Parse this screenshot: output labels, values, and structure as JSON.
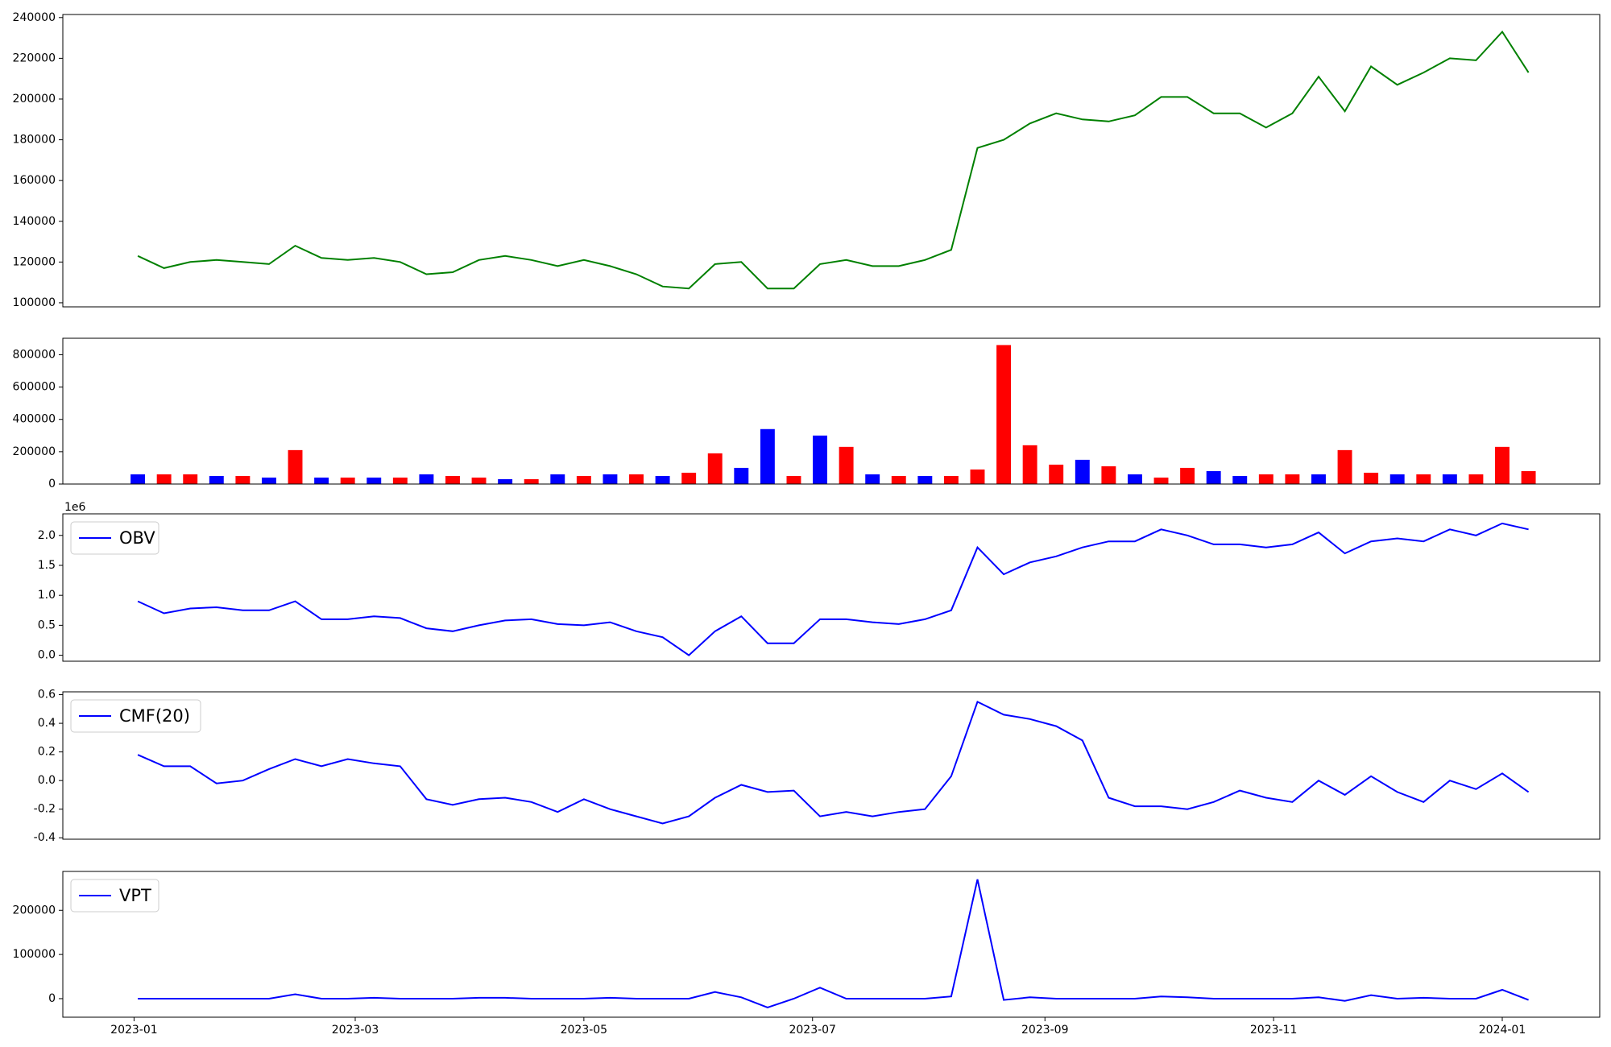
{
  "chart_data": [
    {
      "type": "line",
      "color": "#008000",
      "x": [
        "2023-01-02",
        "2023-01-09",
        "2023-01-16",
        "2023-01-23",
        "2023-01-30",
        "2023-02-06",
        "2023-02-13",
        "2023-02-20",
        "2023-02-27",
        "2023-03-06",
        "2023-03-13",
        "2023-03-20",
        "2023-03-27",
        "2023-04-03",
        "2023-04-10",
        "2023-04-17",
        "2023-04-24",
        "2023-05-01",
        "2023-05-08",
        "2023-05-15",
        "2023-05-22",
        "2023-05-29",
        "2023-06-05",
        "2023-06-12",
        "2023-06-19",
        "2023-06-26",
        "2023-07-03",
        "2023-07-10",
        "2023-07-17",
        "2023-07-24",
        "2023-07-31",
        "2023-08-07",
        "2023-08-14",
        "2023-08-21",
        "2023-08-28",
        "2023-09-04",
        "2023-09-11",
        "2023-09-18",
        "2023-09-25",
        "2023-10-02",
        "2023-10-09",
        "2023-10-16",
        "2023-10-23",
        "2023-10-30",
        "2023-11-06",
        "2023-11-13",
        "2023-11-20",
        "2023-11-27",
        "2023-12-04",
        "2023-12-11",
        "2023-12-18",
        "2023-12-25",
        "2024-01-01",
        "2024-01-08"
      ],
      "values": [
        123000,
        117000,
        120000,
        121000,
        120000,
        119000,
        128000,
        122000,
        121000,
        122000,
        120000,
        114000,
        115000,
        121000,
        123000,
        121000,
        118000,
        121000,
        118000,
        114000,
        108000,
        107000,
        119000,
        120000,
        107000,
        107000,
        119000,
        121000,
        118000,
        118000,
        121000,
        126000,
        176000,
        180000,
        188000,
        193000,
        190000,
        189000,
        192000,
        201000,
        201000,
        193000,
        193000,
        186000,
        193000,
        211000,
        194000,
        216000,
        207000,
        213000,
        220000,
        219000,
        233000,
        213000
      ],
      "xlim": [
        "2022-12-13",
        "2024-01-27"
      ],
      "ylim": [
        98000,
        241500
      ],
      "yticks": [
        100000,
        120000,
        140000,
        160000,
        180000,
        200000,
        220000,
        240000
      ]
    },
    {
      "type": "bar",
      "x": [
        "2023-01-02",
        "2023-01-09",
        "2023-01-16",
        "2023-01-23",
        "2023-01-30",
        "2023-02-06",
        "2023-02-13",
        "2023-02-20",
        "2023-02-27",
        "2023-03-06",
        "2023-03-13",
        "2023-03-20",
        "2023-03-27",
        "2023-04-03",
        "2023-04-10",
        "2023-04-17",
        "2023-04-24",
        "2023-05-01",
        "2023-05-08",
        "2023-05-15",
        "2023-05-22",
        "2023-05-29",
        "2023-06-05",
        "2023-06-12",
        "2023-06-19",
        "2023-06-26",
        "2023-07-03",
        "2023-07-10",
        "2023-07-17",
        "2023-07-24",
        "2023-07-31",
        "2023-08-07",
        "2023-08-14",
        "2023-08-21",
        "2023-08-28",
        "2023-09-04",
        "2023-09-11",
        "2023-09-18",
        "2023-09-25",
        "2023-10-02",
        "2023-10-09",
        "2023-10-16",
        "2023-10-23",
        "2023-10-30",
        "2023-11-06",
        "2023-11-13",
        "2023-11-20",
        "2023-11-27",
        "2023-12-04",
        "2023-12-11",
        "2023-12-18",
        "2023-12-25",
        "2024-01-01",
        "2024-01-08"
      ],
      "values": [
        60000,
        60000,
        60000,
        50000,
        50000,
        40000,
        210000,
        40000,
        40000,
        40000,
        40000,
        60000,
        50000,
        40000,
        30000,
        30000,
        60000,
        50000,
        60000,
        60000,
        50000,
        70000,
        190000,
        100000,
        340000,
        50000,
        300000,
        230000,
        60000,
        50000,
        50000,
        50000,
        90000,
        860000,
        240000,
        120000,
        150000,
        110000,
        60000,
        40000,
        100000,
        80000,
        50000,
        60000,
        60000,
        60000,
        210000,
        70000,
        60000,
        60000,
        60000,
        60000,
        230000,
        80000
      ],
      "colors": [
        "blue",
        "red",
        "red",
        "blue",
        "red",
        "blue",
        "red",
        "blue",
        "red",
        "blue",
        "red",
        "blue",
        "red",
        "red",
        "blue",
        "red",
        "blue",
        "red",
        "blue",
        "red",
        "blue",
        "red",
        "red",
        "blue",
        "blue",
        "red",
        "blue",
        "red",
        "blue",
        "red",
        "blue",
        "red",
        "red",
        "red",
        "red",
        "red",
        "blue",
        "red",
        "blue",
        "red",
        "red",
        "blue",
        "blue",
        "red",
        "red",
        "blue",
        "red",
        "red",
        "blue",
        "red",
        "blue",
        "red",
        "red",
        "red"
      ],
      "xlim": [
        "2022-12-13",
        "2024-01-27"
      ],
      "ylim": [
        0,
        902000
      ],
      "yticks": [
        0,
        200000,
        400000,
        600000,
        800000
      ]
    },
    {
      "type": "line",
      "offset_label": "1e6",
      "legend": "upper left",
      "x": [
        "2023-01-02",
        "2023-01-09",
        "2023-01-16",
        "2023-01-23",
        "2023-01-30",
        "2023-02-06",
        "2023-02-13",
        "2023-02-20",
        "2023-02-27",
        "2023-03-06",
        "2023-03-13",
        "2023-03-20",
        "2023-03-27",
        "2023-04-03",
        "2023-04-10",
        "2023-04-17",
        "2023-04-24",
        "2023-05-01",
        "2023-05-08",
        "2023-05-15",
        "2023-05-22",
        "2023-05-29",
        "2023-06-05",
        "2023-06-12",
        "2023-06-19",
        "2023-06-26",
        "2023-07-03",
        "2023-07-10",
        "2023-07-17",
        "2023-07-24",
        "2023-07-31",
        "2023-08-07",
        "2023-08-14",
        "2023-08-21",
        "2023-08-28",
        "2023-09-04",
        "2023-09-11",
        "2023-09-18",
        "2023-09-25",
        "2023-10-02",
        "2023-10-09",
        "2023-10-16",
        "2023-10-23",
        "2023-10-30",
        "2023-11-06",
        "2023-11-13",
        "2023-11-20",
        "2023-11-27",
        "2023-12-04",
        "2023-12-11",
        "2023-12-18",
        "2023-12-25",
        "2024-01-01",
        "2024-01-08"
      ],
      "series": [
        {
          "name": "OBV",
          "color": "#0000ff",
          "values": [
            0.9,
            0.7,
            0.78,
            0.8,
            0.75,
            0.75,
            0.9,
            0.6,
            0.6,
            0.65,
            0.62,
            0.45,
            0.4,
            0.5,
            0.58,
            0.6,
            0.52,
            0.5,
            0.55,
            0.4,
            0.3,
            0.0,
            0.4,
            0.65,
            0.2,
            0.2,
            0.6,
            0.6,
            0.55,
            0.52,
            0.6,
            0.75,
            1.8,
            1.35,
            1.55,
            1.65,
            1.8,
            1.9,
            1.9,
            2.1,
            2.0,
            1.85,
            1.85,
            1.8,
            1.85,
            2.05,
            1.7,
            1.9,
            1.95,
            1.9,
            2.1,
            2.0,
            2.2,
            2.1
          ]
        }
      ],
      "xlim": [
        "2022-12-13",
        "2024-01-27"
      ],
      "ylim": [
        -0.1,
        2.36
      ],
      "yticks": [
        {
          "value": 0,
          "label": "0.0"
        },
        {
          "value": 0.5,
          "label": "0.5"
        },
        {
          "value": 1,
          "label": "1.0"
        },
        {
          "value": 1.5,
          "label": "1.5"
        },
        {
          "value": 2,
          "label": "2.0"
        }
      ]
    },
    {
      "type": "line",
      "legend": "upper left",
      "x": [
        "2023-01-02",
        "2023-01-09",
        "2023-01-16",
        "2023-01-23",
        "2023-01-30",
        "2023-02-06",
        "2023-02-13",
        "2023-02-20",
        "2023-02-27",
        "2023-03-06",
        "2023-03-13",
        "2023-03-20",
        "2023-03-27",
        "2023-04-03",
        "2023-04-10",
        "2023-04-17",
        "2023-04-24",
        "2023-05-01",
        "2023-05-08",
        "2023-05-15",
        "2023-05-22",
        "2023-05-29",
        "2023-06-05",
        "2023-06-12",
        "2023-06-19",
        "2023-06-26",
        "2023-07-03",
        "2023-07-10",
        "2023-07-17",
        "2023-07-24",
        "2023-07-31",
        "2023-08-07",
        "2023-08-14",
        "2023-08-21",
        "2023-08-28",
        "2023-09-04",
        "2023-09-11",
        "2023-09-18",
        "2023-09-25",
        "2023-10-02",
        "2023-10-09",
        "2023-10-16",
        "2023-10-23",
        "2023-10-30",
        "2023-11-06",
        "2023-11-13",
        "2023-11-20",
        "2023-11-27",
        "2023-12-04",
        "2023-12-11",
        "2023-12-18",
        "2023-12-25",
        "2024-01-01",
        "2024-01-08"
      ],
      "series": [
        {
          "name": "CMF(20)",
          "color": "#0000ff",
          "values": [
            0.18,
            0.1,
            0.1,
            -0.02,
            0.0,
            0.08,
            0.15,
            0.1,
            0.15,
            0.12,
            0.1,
            -0.13,
            -0.17,
            -0.13,
            -0.12,
            -0.15,
            -0.22,
            -0.13,
            -0.2,
            -0.25,
            -0.3,
            -0.25,
            -0.12,
            -0.03,
            -0.08,
            -0.07,
            -0.25,
            -0.22,
            -0.25,
            -0.22,
            -0.2,
            0.03,
            0.55,
            0.46,
            0.43,
            0.38,
            0.28,
            -0.12,
            -0.18,
            -0.18,
            -0.2,
            -0.15,
            -0.07,
            -0.12,
            -0.15,
            0.0,
            -0.1,
            0.03,
            -0.08,
            -0.15,
            0.0,
            -0.06,
            0.05,
            -0.08
          ]
        }
      ],
      "xlim": [
        "2022-12-13",
        "2024-01-27"
      ],
      "ylim": [
        -0.41,
        0.62
      ],
      "yticks": [
        -0.4,
        -0.2,
        {
          "value": 0,
          "label": "0.0"
        },
        0.2,
        0.4,
        0.6
      ]
    },
    {
      "type": "line",
      "legend": "upper left",
      "x": [
        "2023-01-02",
        "2023-01-09",
        "2023-01-16",
        "2023-01-23",
        "2023-01-30",
        "2023-02-06",
        "2023-02-13",
        "2023-02-20",
        "2023-02-27",
        "2023-03-06",
        "2023-03-13",
        "2023-03-20",
        "2023-03-27",
        "2023-04-03",
        "2023-04-10",
        "2023-04-17",
        "2023-04-24",
        "2023-05-01",
        "2023-05-08",
        "2023-05-15",
        "2023-05-22",
        "2023-05-29",
        "2023-06-05",
        "2023-06-12",
        "2023-06-19",
        "2023-06-26",
        "2023-07-03",
        "2023-07-10",
        "2023-07-17",
        "2023-07-24",
        "2023-07-31",
        "2023-08-07",
        "2023-08-14",
        "2023-08-21",
        "2023-08-28",
        "2023-09-04",
        "2023-09-11",
        "2023-09-18",
        "2023-09-25",
        "2023-10-02",
        "2023-10-09",
        "2023-10-16",
        "2023-10-23",
        "2023-10-30",
        "2023-11-06",
        "2023-11-13",
        "2023-11-20",
        "2023-11-27",
        "2023-12-04",
        "2023-12-11",
        "2023-12-18",
        "2023-12-25",
        "2024-01-01",
        "2024-01-08"
      ],
      "series": [
        {
          "name": "VPT",
          "color": "#0000ff",
          "values": [
            0,
            0,
            0,
            0,
            0,
            0,
            10000,
            0,
            0,
            2000,
            0,
            0,
            0,
            2000,
            2000,
            0,
            0,
            0,
            2000,
            0,
            0,
            0,
            15000,
            3000,
            -20000,
            0,
            25000,
            0,
            0,
            0,
            0,
            5000,
            270000,
            -3000,
            3000,
            0,
            0,
            0,
            0,
            5000,
            3000,
            0,
            0,
            0,
            0,
            3000,
            -5000,
            8000,
            0,
            2000,
            0,
            0,
            20000,
            -3000
          ]
        }
      ],
      "xlim": [
        "2022-12-13",
        "2024-01-27"
      ],
      "ylim": [
        -42000,
        288000
      ],
      "yticks": [
        0,
        100000,
        200000
      ],
      "xticks": [
        {
          "value": "2023-01-01",
          "label": "2023-01"
        },
        {
          "value": "2023-03-01",
          "label": "2023-03"
        },
        {
          "value": "2023-05-01",
          "label": "2023-05"
        },
        {
          "value": "2023-07-01",
          "label": "2023-07"
        },
        {
          "value": "2023-09-01",
          "label": "2023-09"
        },
        {
          "value": "2023-11-01",
          "label": "2023-11"
        },
        {
          "value": "2024-01-01",
          "label": "2024-01"
        }
      ]
    }
  ]
}
